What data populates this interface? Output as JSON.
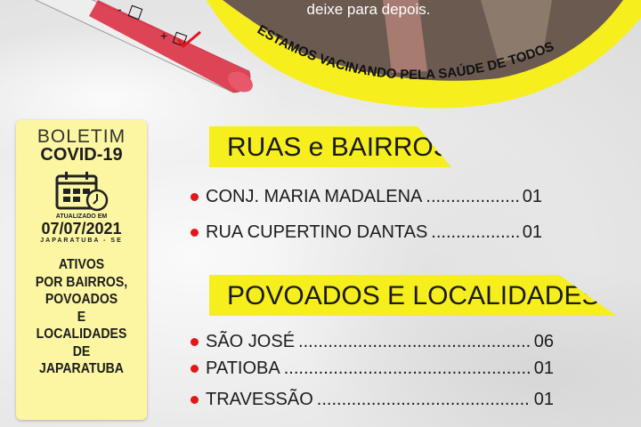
{
  "banner": {
    "photo_caption": "deixe para depois.",
    "slogan": "ESTAMOS VACINANDO PELA SAÚDE DE TODOS",
    "test_marks": {
      "negative": "-",
      "positive": "+"
    }
  },
  "panel": {
    "title_line1": "BOLETIM",
    "title_line2": "COVID-19",
    "updated_label": "ATUALIZADO EM",
    "date": "07/07/2021",
    "location": "JAPARATUBA - SE",
    "description": [
      "ATIVOS",
      "POR BAIRROS,",
      "POVOADOS",
      "E",
      "LOCALIDADES",
      "DE",
      "JAPARATUBA"
    ]
  },
  "sections": [
    {
      "title": "RUAS e BAIRROS",
      "items": [
        {
          "name": "CONJ. MARIA MADALENA",
          "count": "01"
        },
        {
          "name": "RUA CUPERTINO DANTAS",
          "count": "01"
        }
      ]
    },
    {
      "title": "POVOADOS E LOCALIDADES",
      "items": [
        {
          "name": "SÃO JOSÉ",
          "count": "06"
        },
        {
          "name": "PATIOBA",
          "count": "01"
        },
        {
          "name": "TRAVESSÃO",
          "count": "01"
        }
      ]
    }
  ],
  "colors": {
    "yellow": "#f7ee1e",
    "panel": "#fcf6a2",
    "bullet": "#e2161b",
    "tube": "#d9263a"
  }
}
